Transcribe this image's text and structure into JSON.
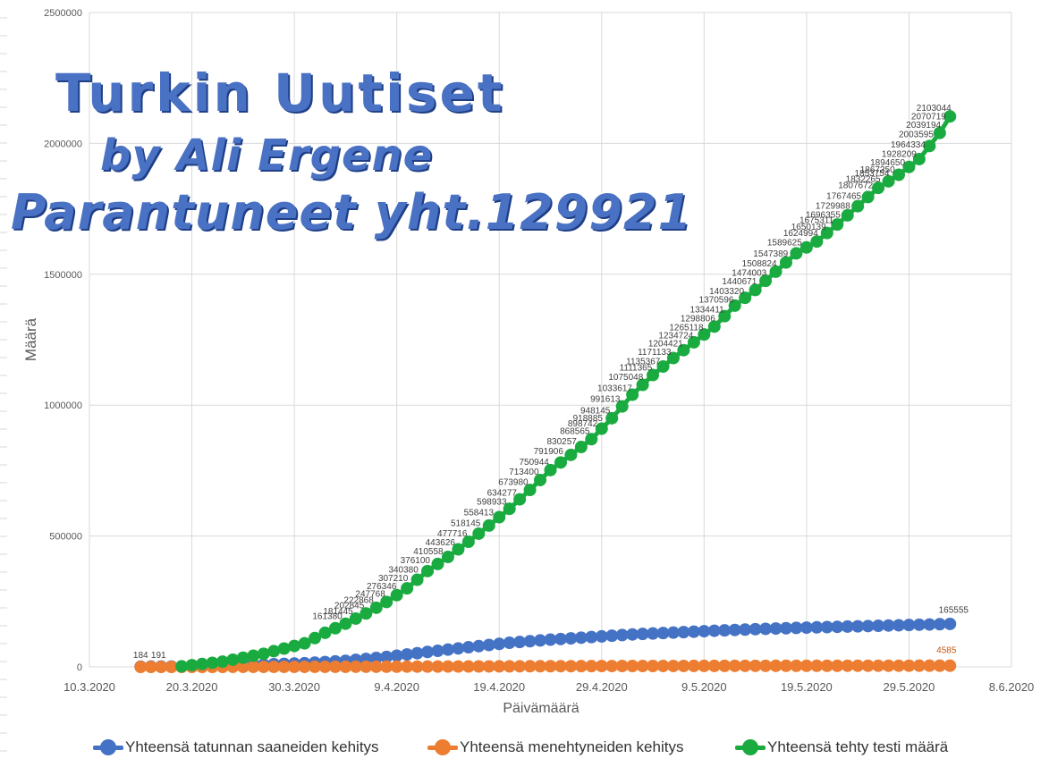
{
  "chart_data": {
    "type": "line",
    "title": "",
    "xlabel": "Päivämäärä",
    "ylabel": "Määrä",
    "ylim": [
      0,
      2500000
    ],
    "yticks": [
      "0",
      "500000",
      "1000000",
      "1500000",
      "2000000",
      "2500000"
    ],
    "xlim": [
      "2020-03-10",
      "2020-06-08"
    ],
    "xticks": [
      "10.3.2020",
      "20.3.2020",
      "30.3.2020",
      "9.4.2020",
      "19.4.2020",
      "29.4.2020",
      "9.5.2020",
      "19.5.2020",
      "29.5.2020",
      "8.6.2020"
    ],
    "grid": true,
    "legend_position": "bottom",
    "series": [
      {
        "name": "Yhteensä tatunnan saaneiden kehitys",
        "color": "#4472c4",
        "x": [
          "2020-03-15",
          "2020-03-19",
          "2020-03-23",
          "2020-03-27",
          "2020-03-31",
          "2020-04-04",
          "2020-04-08",
          "2020-04-12",
          "2020-04-16",
          "2020-04-20",
          "2020-04-24",
          "2020-04-28",
          "2020-05-02",
          "2020-05-06",
          "2020-05-10",
          "2020-05-14",
          "2020-05-18",
          "2020-05-22",
          "2020-05-26",
          "2020-05-30",
          "2020-06-02"
        ],
        "y": [
          1000,
          1500,
          3800,
          9000,
          14000,
          23000,
          38000,
          57000,
          75000,
          92000,
          104000,
          114000,
          124000,
          131000,
          138000,
          144000,
          149000,
          153000,
          157000,
          161000,
          164000
        ]
      },
      {
        "name": "Yhteensä menehtyneiden kehitys",
        "color": "#ed7d31",
        "x": [
          "2020-03-15",
          "2020-03-23",
          "2020-03-31",
          "2020-04-08",
          "2020-04-16",
          "2020-04-24",
          "2020-05-02",
          "2020-05-10",
          "2020-05-18",
          "2020-05-26",
          "2020-06-02"
        ],
        "y": [
          0,
          30,
          200,
          700,
          1600,
          2600,
          3300,
          3800,
          4200,
          4400,
          4585
        ]
      },
      {
        "name": "Yhteensä tehty testi määrä",
        "color": "#1aab40",
        "x": [
          "2020-03-19",
          "2020-03-23",
          "2020-03-27",
          "2020-03-31",
          "2020-04-02",
          "2020-04-04",
          "2020-04-06",
          "2020-04-08",
          "2020-04-10",
          "2020-04-12",
          "2020-04-14",
          "2020-04-16",
          "2020-04-18",
          "2020-04-20",
          "2020-04-22",
          "2020-04-24",
          "2020-04-26",
          "2020-04-28",
          "2020-04-30",
          "2020-05-02",
          "2020-05-04",
          "2020-05-06",
          "2020-05-08",
          "2020-05-10",
          "2020-05-12",
          "2020-05-14",
          "2020-05-16",
          "2020-05-18",
          "2020-05-20",
          "2020-05-22",
          "2020-05-24",
          "2020-05-26",
          "2020-05-28",
          "2020-05-30",
          "2020-06-01",
          "2020-06-02"
        ],
        "y": [
          2000,
          20000,
          50000,
          90000,
          130000,
          165000,
          204000,
          248000,
          300000,
          366000,
          420000,
          478000,
          540000,
          604000,
          676000,
          752000,
          810000,
          870000,
          950000,
          1040000,
          1115000,
          1180000,
          1240000,
          1300000,
          1380000,
          1440000,
          1510000,
          1580000,
          1625000,
          1690000,
          1760000,
          1830000,
          1880000,
          1940000,
          2040000,
          2103044
        ]
      }
    ],
    "data_labels": [
      {
        "series": 2,
        "value": "2103044"
      },
      {
        "series": 2,
        "value": "2070719"
      },
      {
        "series": 2,
        "value": "2039194"
      },
      {
        "series": 2,
        "value": "2003595"
      },
      {
        "series": 2,
        "value": "1964334"
      },
      {
        "series": 2,
        "value": "1928209"
      },
      {
        "series": 2,
        "value": "1894650"
      },
      {
        "series": 2,
        "value": "1867350"
      },
      {
        "series": 2,
        "value": "1853754"
      },
      {
        "series": 2,
        "value": "1832265"
      },
      {
        "series": 2,
        "value": "1807672"
      },
      {
        "series": 2,
        "value": "1767465"
      },
      {
        "series": 2,
        "value": "1729988"
      },
      {
        "series": 2,
        "value": "1696355"
      },
      {
        "series": 2,
        "value": "1675311"
      },
      {
        "series": 2,
        "value": "1650139"
      },
      {
        "series": 2,
        "value": "1624994"
      },
      {
        "series": 2,
        "value": "1589625"
      },
      {
        "series": 2,
        "value": "1547389"
      },
      {
        "series": 2,
        "value": "1508824"
      },
      {
        "series": 2,
        "value": "1474003"
      },
      {
        "series": 2,
        "value": "1440671"
      },
      {
        "series": 2,
        "value": "1403320"
      },
      {
        "series": 2,
        "value": "1370596"
      },
      {
        "series": 2,
        "value": "1334411"
      },
      {
        "series": 2,
        "value": "1298806"
      },
      {
        "series": 2,
        "value": "1265118"
      },
      {
        "series": 2,
        "value": "1234724"
      },
      {
        "series": 2,
        "value": "1204421"
      },
      {
        "series": 2,
        "value": "1171133"
      },
      {
        "series": 2,
        "value": "1135367"
      },
      {
        "series": 2,
        "value": "1111365"
      },
      {
        "series": 2,
        "value": "1075048"
      },
      {
        "series": 2,
        "value": "1033617"
      },
      {
        "series": 2,
        "value": "991613"
      },
      {
        "series": 2,
        "value": "948145"
      },
      {
        "series": 2,
        "value": "898742"
      },
      {
        "series": 2,
        "value": "918885"
      },
      {
        "series": 2,
        "value": "868565"
      },
      {
        "series": 2,
        "value": "830257"
      },
      {
        "series": 2,
        "value": "791906"
      },
      {
        "series": 2,
        "value": "750944"
      },
      {
        "series": 2,
        "value": "713400"
      },
      {
        "series": 2,
        "value": "673980"
      },
      {
        "series": 2,
        "value": "634277"
      },
      {
        "series": 2,
        "value": "598933"
      },
      {
        "series": 2,
        "value": "558413"
      },
      {
        "series": 2,
        "value": "518145"
      },
      {
        "series": 2,
        "value": "477716"
      },
      {
        "series": 2,
        "value": "443626"
      },
      {
        "series": 2,
        "value": "410558"
      },
      {
        "series": 2,
        "value": "376100"
      },
      {
        "series": 2,
        "value": "340380"
      },
      {
        "series": 2,
        "value": "307210"
      },
      {
        "series": 2,
        "value": "276346"
      },
      {
        "series": 2,
        "value": "247768"
      },
      {
        "series": 2,
        "value": "222868"
      },
      {
        "series": 2,
        "value": "202845"
      },
      {
        "series": 2,
        "value": "181445"
      },
      {
        "series": 2,
        "value": "161380"
      },
      {
        "series": 0,
        "value": "184"
      },
      {
        "series": 0,
        "value": "191"
      },
      {
        "series": 0,
        "value": "165555"
      },
      {
        "series": 1,
        "value": "4585"
      }
    ]
  },
  "watermark": {
    "title": "Turkin Uutiset",
    "author": "by Ali Ergene",
    "recovered": "Parantuneet yht.129921"
  }
}
